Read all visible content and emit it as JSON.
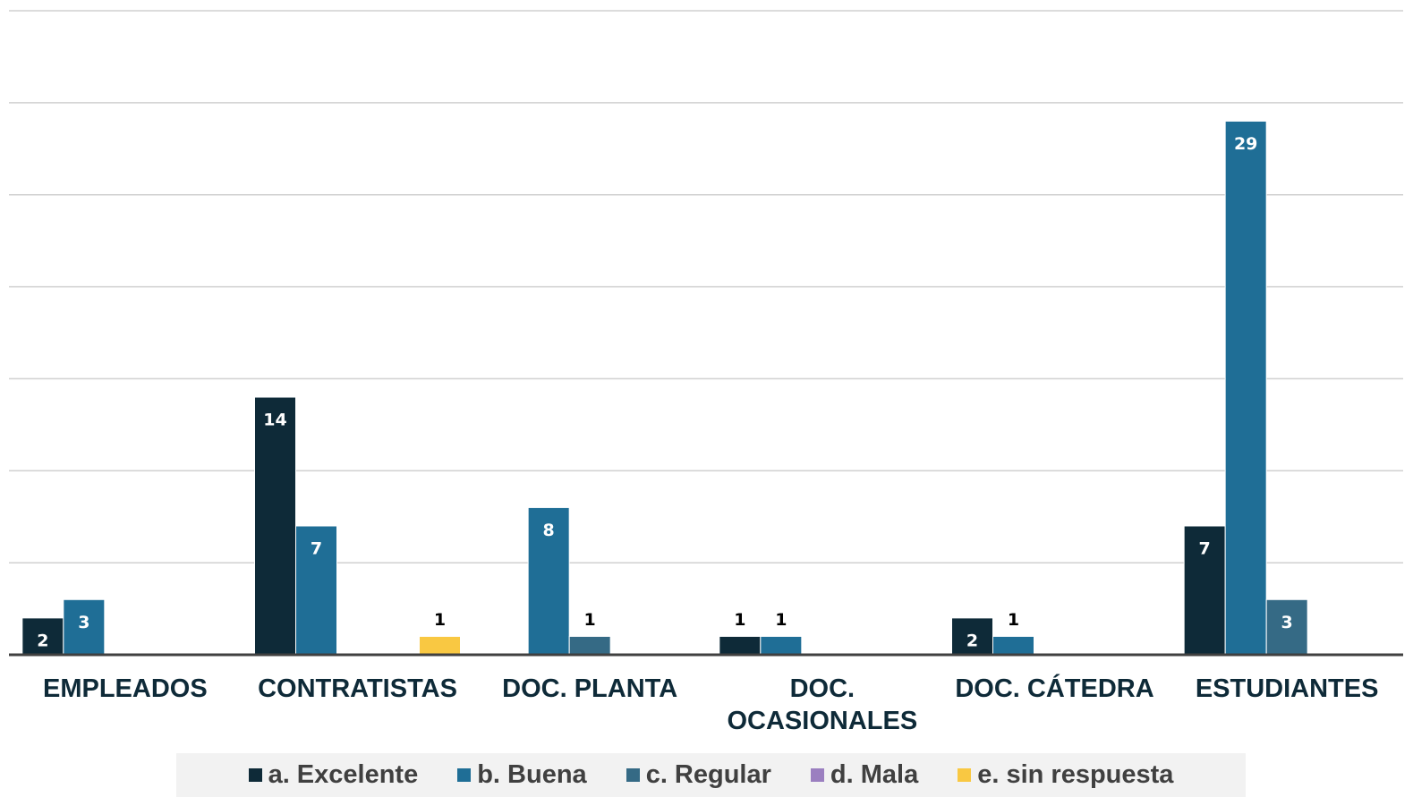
{
  "chart_data": {
    "type": "bar",
    "categories": [
      "EMPLEADOS",
      "CONTRATISTAS",
      "DOC. PLANTA",
      "DOC. OCASIONALES",
      "DOC. CÁTEDRA",
      "ESTUDIANTES"
    ],
    "series": [
      {
        "name": "a. Excelente",
        "color": "#0e2a38",
        "values": [
          2,
          14,
          null,
          1,
          2,
          7
        ]
      },
      {
        "name": "b. Buena",
        "color": "#1f6e96",
        "values": [
          3,
          7,
          8,
          1,
          1,
          29
        ]
      },
      {
        "name": "c. Regular",
        "color": "#356a85",
        "values": [
          null,
          null,
          1,
          null,
          null,
          3
        ]
      },
      {
        "name": "d. Mala",
        "color": "#9b7fc0",
        "values": [
          null,
          null,
          null,
          null,
          null,
          null
        ]
      },
      {
        "name": "e. sin respuesta",
        "color": "#f9c842",
        "values": [
          null,
          1,
          null,
          null,
          null,
          null
        ]
      }
    ],
    "ylim": [
      0,
      35
    ],
    "yticks": [
      0,
      5,
      10,
      15,
      20,
      25,
      30,
      35
    ],
    "grid": true,
    "legend": "bottom"
  }
}
